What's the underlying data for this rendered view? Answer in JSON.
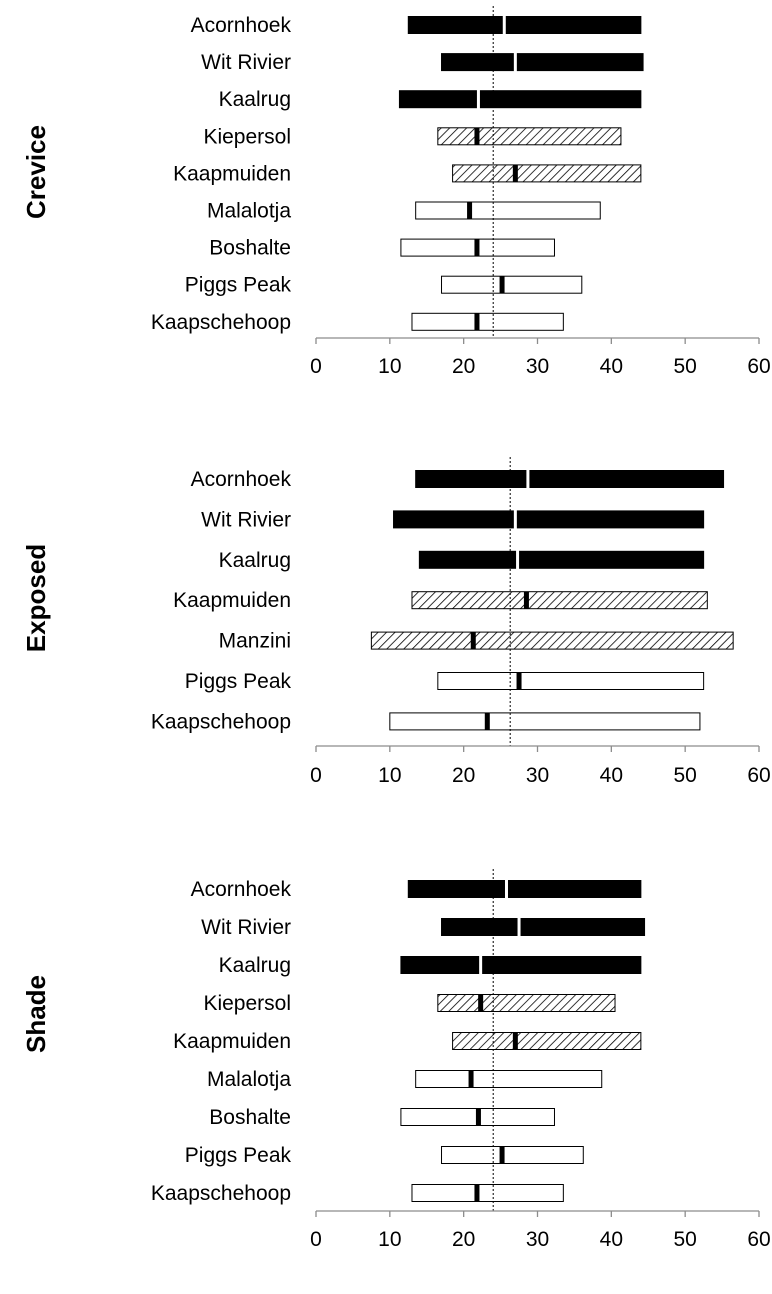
{
  "chart_data": [
    {
      "type": "bar",
      "title": "Crevice",
      "xlim": [
        0,
        60
      ],
      "xticks": [
        0,
        10,
        20,
        30,
        40,
        50,
        60
      ],
      "reference_line": 24,
      "legend": "none",
      "grid": false,
      "categories": [
        "Acornhoek",
        "Wit Rivier",
        "Kaalrug",
        "Kiepersol",
        "Kaapmuiden",
        "Malalotja",
        "Boshalte",
        "Piggs Peak",
        "Kaapschehoop"
      ],
      "ranges": [
        {
          "min": 12.5,
          "median": 25.5,
          "max": 44.0,
          "fill": "solid"
        },
        {
          "min": 17.0,
          "median": 27.0,
          "max": 44.3,
          "fill": "solid"
        },
        {
          "min": 11.3,
          "median": 22.0,
          "max": 44.0,
          "fill": "solid"
        },
        {
          "min": 16.5,
          "median": 21.8,
          "max": 41.3,
          "fill": "hatched"
        },
        {
          "min": 18.5,
          "median": 27.0,
          "max": 44.0,
          "fill": "hatched"
        },
        {
          "min": 13.5,
          "median": 20.8,
          "max": 38.5,
          "fill": "open"
        },
        {
          "min": 11.5,
          "median": 21.8,
          "max": 32.3,
          "fill": "open"
        },
        {
          "min": 17.0,
          "median": 25.2,
          "max": 36.0,
          "fill": "open"
        },
        {
          "min": 13.0,
          "median": 21.8,
          "max": 33.5,
          "fill": "open"
        }
      ]
    },
    {
      "type": "bar",
      "title": "Exposed",
      "xlim": [
        0,
        60
      ],
      "xticks": [
        0,
        10,
        20,
        30,
        40,
        50,
        60
      ],
      "reference_line": 26.3,
      "legend": "none",
      "grid": false,
      "categories": [
        "Acornhoek",
        "Wit Rivier",
        "Kaalrug",
        "Kaapmuiden",
        "Manzini",
        "Piggs Peak",
        "Kaapschehoop"
      ],
      "ranges": [
        {
          "min": 13.5,
          "median": 28.7,
          "max": 55.2,
          "fill": "solid"
        },
        {
          "min": 10.5,
          "median": 27.0,
          "max": 52.5,
          "fill": "solid"
        },
        {
          "min": 14.0,
          "median": 27.3,
          "max": 52.5,
          "fill": "solid"
        },
        {
          "min": 13.0,
          "median": 28.5,
          "max": 53.0,
          "fill": "hatched"
        },
        {
          "min": 7.5,
          "median": 21.3,
          "max": 56.5,
          "fill": "hatched"
        },
        {
          "min": 16.5,
          "median": 27.5,
          "max": 52.5,
          "fill": "open"
        },
        {
          "min": 10.0,
          "median": 23.2,
          "max": 52.0,
          "fill": "open"
        }
      ]
    },
    {
      "type": "bar",
      "title": "Shade",
      "xlim": [
        0,
        60
      ],
      "xticks": [
        0,
        10,
        20,
        30,
        40,
        50,
        60
      ],
      "reference_line": 24,
      "legend": "none",
      "grid": false,
      "categories": [
        "Acornhoek",
        "Wit Rivier",
        "Kaalrug",
        "Kiepersol",
        "Kaapmuiden",
        "Malalotja",
        "Boshalte",
        "Piggs Peak",
        "Kaapschehoop"
      ],
      "ranges": [
        {
          "min": 12.5,
          "median": 25.8,
          "max": 44.0,
          "fill": "solid"
        },
        {
          "min": 17.0,
          "median": 27.5,
          "max": 44.5,
          "fill": "solid"
        },
        {
          "min": 11.5,
          "median": 22.3,
          "max": 44.0,
          "fill": "solid"
        },
        {
          "min": 16.5,
          "median": 22.3,
          "max": 40.5,
          "fill": "hatched"
        },
        {
          "min": 18.5,
          "median": 27.0,
          "max": 44.0,
          "fill": "hatched"
        },
        {
          "min": 13.5,
          "median": 21.0,
          "max": 38.7,
          "fill": "open"
        },
        {
          "min": 11.5,
          "median": 22.0,
          "max": 32.3,
          "fill": "open"
        },
        {
          "min": 17.0,
          "median": 25.2,
          "max": 36.2,
          "fill": "open"
        },
        {
          "min": 13.0,
          "median": 21.8,
          "max": 33.5,
          "fill": "open"
        }
      ]
    }
  ]
}
